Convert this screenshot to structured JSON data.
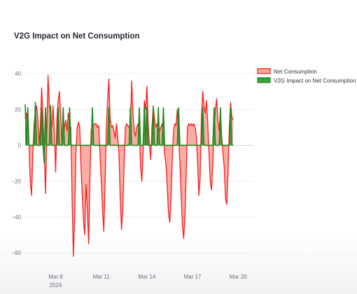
{
  "chart_data": {
    "type": "area",
    "title": "V2G Impact on Net Consumption",
    "xlabel": "",
    "ylabel": "",
    "ylim": [
      -65,
      42
    ],
    "yticks": [
      40,
      20,
      0,
      -20,
      -40,
      -60
    ],
    "xlim": [
      "2024-03-06",
      "2024-03-21"
    ],
    "xticks": [
      {
        "date": "2024-03-08",
        "label": "Mar 8",
        "sublabel": "2024"
      },
      {
        "date": "2024-03-11",
        "label": "Mar 11",
        "sublabel": ""
      },
      {
        "date": "2024-03-14",
        "label": "Mar 14",
        "sublabel": ""
      },
      {
        "date": "2024-03-17",
        "label": "Mar 17",
        "sublabel": ""
      },
      {
        "date": "2024-03-20",
        "label": "Mar 20",
        "sublabel": ""
      }
    ],
    "legend_position": "top-right",
    "series": [
      {
        "name": "Net Consumption",
        "color": "#ff1a1a",
        "fill": "#f7a59c",
        "points": [
          [
            "2024-03-06 00:00",
            15
          ],
          [
            "2024-03-06 02:00",
            18
          ],
          [
            "2024-03-06 04:00",
            9
          ],
          [
            "2024-03-06 06:00",
            0
          ],
          [
            "2024-03-06 08:00",
            -20
          ],
          [
            "2024-03-06 10:00",
            -28
          ],
          [
            "2024-03-06 12:00",
            -5
          ],
          [
            "2024-03-06 14:00",
            12
          ],
          [
            "2024-03-06 16:00",
            18
          ],
          [
            "2024-03-06 18:00",
            22
          ],
          [
            "2024-03-06 20:00",
            15
          ],
          [
            "2024-03-06 22:00",
            0
          ],
          [
            "2024-03-07 00:00",
            12
          ],
          [
            "2024-03-07 02:00",
            32
          ],
          [
            "2024-03-07 04:00",
            16
          ],
          [
            "2024-03-07 06:00",
            -2
          ],
          [
            "2024-03-07 08:00",
            -27
          ],
          [
            "2024-03-07 10:00",
            5
          ],
          [
            "2024-03-07 12:00",
            39
          ],
          [
            "2024-03-07 14:00",
            24
          ],
          [
            "2024-03-07 16:00",
            14
          ],
          [
            "2024-03-07 18:00",
            10
          ],
          [
            "2024-03-07 20:00",
            22
          ],
          [
            "2024-03-07 22:00",
            6
          ],
          [
            "2024-03-08 00:00",
            -15
          ],
          [
            "2024-03-08 02:00",
            15
          ],
          [
            "2024-03-08 04:00",
            25
          ],
          [
            "2024-03-08 06:00",
            30
          ],
          [
            "2024-03-08 08:00",
            17
          ],
          [
            "2024-03-08 10:00",
            0
          ],
          [
            "2024-03-08 12:00",
            4
          ],
          [
            "2024-03-08 14:00",
            10
          ],
          [
            "2024-03-08 16:00",
            14
          ],
          [
            "2024-03-08 18:00",
            8
          ],
          [
            "2024-03-08 20:00",
            18
          ],
          [
            "2024-03-08 22:00",
            12
          ],
          [
            "2024-03-09 00:00",
            10
          ],
          [
            "2024-03-09 02:00",
            -30
          ],
          [
            "2024-03-09 04:00",
            -62
          ],
          [
            "2024-03-09 06:00",
            -40
          ],
          [
            "2024-03-09 08:00",
            -5
          ],
          [
            "2024-03-09 10:00",
            10
          ],
          [
            "2024-03-09 12:00",
            13
          ],
          [
            "2024-03-09 14:00",
            10
          ],
          [
            "2024-03-09 16:00",
            -12
          ],
          [
            "2024-03-09 18:00",
            -28
          ],
          [
            "2024-03-09 20:00",
            -42
          ],
          [
            "2024-03-09 22:00",
            -50
          ],
          [
            "2024-03-10 00:00",
            -22
          ],
          [
            "2024-03-10 02:00",
            -35
          ],
          [
            "2024-03-10 04:00",
            -55
          ],
          [
            "2024-03-10 06:00",
            -20
          ],
          [
            "2024-03-10 08:00",
            8
          ],
          [
            "2024-03-10 10:00",
            12
          ],
          [
            "2024-03-10 12:00",
            11
          ],
          [
            "2024-03-10 14:00",
            12
          ],
          [
            "2024-03-10 16:00",
            12
          ],
          [
            "2024-03-10 18:00",
            10
          ],
          [
            "2024-03-10 20:00",
            11
          ],
          [
            "2024-03-10 22:00",
            -5
          ],
          [
            "2024-03-11 00:00",
            -20
          ],
          [
            "2024-03-11 02:00",
            -36
          ],
          [
            "2024-03-11 04:00",
            -48
          ],
          [
            "2024-03-11 06:00",
            -22
          ],
          [
            "2024-03-11 08:00",
            10
          ],
          [
            "2024-03-11 10:00",
            25
          ],
          [
            "2024-03-11 12:00",
            37
          ],
          [
            "2024-03-11 14:00",
            15
          ],
          [
            "2024-03-11 16:00",
            10
          ],
          [
            "2024-03-11 18:00",
            11
          ],
          [
            "2024-03-11 20:00",
            8
          ],
          [
            "2024-03-11 22:00",
            4
          ],
          [
            "2024-03-12 00:00",
            12
          ],
          [
            "2024-03-12 02:00",
            4
          ],
          [
            "2024-03-12 04:00",
            -5
          ],
          [
            "2024-03-12 06:00",
            -30
          ],
          [
            "2024-03-12 08:00",
            -47
          ],
          [
            "2024-03-12 10:00",
            -35
          ],
          [
            "2024-03-12 12:00",
            -10
          ],
          [
            "2024-03-12 14:00",
            10
          ],
          [
            "2024-03-12 16:00",
            12
          ],
          [
            "2024-03-12 18:00",
            11
          ],
          [
            "2024-03-12 20:00",
            10
          ],
          [
            "2024-03-12 22:00",
            12
          ],
          [
            "2024-03-13 00:00",
            36
          ],
          [
            "2024-03-13 02:00",
            18
          ],
          [
            "2024-03-13 04:00",
            8
          ],
          [
            "2024-03-13 06:00",
            5
          ],
          [
            "2024-03-13 08:00",
            10
          ],
          [
            "2024-03-13 10:00",
            12
          ],
          [
            "2024-03-13 12:00",
            10
          ],
          [
            "2024-03-13 14:00",
            -12
          ],
          [
            "2024-03-13 16:00",
            -20
          ],
          [
            "2024-03-13 18:00",
            -5
          ],
          [
            "2024-03-13 20:00",
            25
          ],
          [
            "2024-03-13 22:00",
            20
          ],
          [
            "2024-03-14 00:00",
            33
          ],
          [
            "2024-03-14 02:00",
            12
          ],
          [
            "2024-03-14 04:00",
            0
          ],
          [
            "2024-03-14 06:00",
            -8
          ],
          [
            "2024-03-14 08:00",
            10
          ],
          [
            "2024-03-14 10:00",
            22
          ],
          [
            "2024-03-14 12:00",
            15
          ],
          [
            "2024-03-14 14:00",
            10
          ],
          [
            "2024-03-14 16:00",
            12
          ],
          [
            "2024-03-14 18:00",
            11
          ],
          [
            "2024-03-14 20:00",
            8
          ],
          [
            "2024-03-14 22:00",
            10
          ],
          [
            "2024-03-15 00:00",
            12
          ],
          [
            "2024-03-15 02:00",
            4
          ],
          [
            "2024-03-15 04:00",
            -5
          ],
          [
            "2024-03-15 06:00",
            -10
          ],
          [
            "2024-03-15 08:00",
            -22
          ],
          [
            "2024-03-15 10:00",
            -38
          ],
          [
            "2024-03-15 12:00",
            -43
          ],
          [
            "2024-03-15 14:00",
            -30
          ],
          [
            "2024-03-15 16:00",
            -8
          ],
          [
            "2024-03-15 18:00",
            8
          ],
          [
            "2024-03-15 20:00",
            12
          ],
          [
            "2024-03-15 22:00",
            11
          ],
          [
            "2024-03-16 00:00",
            20
          ],
          [
            "2024-03-16 02:00",
            5
          ],
          [
            "2024-03-16 04:00",
            -10
          ],
          [
            "2024-03-16 06:00",
            -28
          ],
          [
            "2024-03-16 08:00",
            -45
          ],
          [
            "2024-03-16 10:00",
            -52
          ],
          [
            "2024-03-16 12:00",
            -40
          ],
          [
            "2024-03-16 14:00",
            -15
          ],
          [
            "2024-03-16 16:00",
            10
          ],
          [
            "2024-03-16 18:00",
            12
          ],
          [
            "2024-03-16 20:00",
            11
          ],
          [
            "2024-03-16 22:00",
            12
          ],
          [
            "2024-03-17 00:00",
            11
          ],
          [
            "2024-03-17 02:00",
            12
          ],
          [
            "2024-03-17 04:00",
            10
          ],
          [
            "2024-03-17 06:00",
            5
          ],
          [
            "2024-03-17 08:00",
            -10
          ],
          [
            "2024-03-17 10:00",
            -28
          ],
          [
            "2024-03-17 12:00",
            -18
          ],
          [
            "2024-03-17 14:00",
            15
          ],
          [
            "2024-03-17 16:00",
            30
          ],
          [
            "2024-03-17 18:00",
            22
          ],
          [
            "2024-03-17 20:00",
            18
          ],
          [
            "2024-03-17 22:00",
            25
          ],
          [
            "2024-03-18 00:00",
            12
          ],
          [
            "2024-03-18 02:00",
            -5
          ],
          [
            "2024-03-18 04:00",
            -20
          ],
          [
            "2024-03-18 06:00",
            -25
          ],
          [
            "2024-03-18 08:00",
            -10
          ],
          [
            "2024-03-18 10:00",
            10
          ],
          [
            "2024-03-18 12:00",
            20
          ],
          [
            "2024-03-18 14:00",
            26
          ],
          [
            "2024-03-18 16:00",
            14
          ],
          [
            "2024-03-18 18:00",
            8
          ],
          [
            "2024-03-18 20:00",
            18
          ],
          [
            "2024-03-18 22:00",
            5
          ],
          [
            "2024-03-19 00:00",
            -5
          ],
          [
            "2024-03-19 02:00",
            -12
          ],
          [
            "2024-03-19 04:00",
            -30
          ],
          [
            "2024-03-19 06:00",
            -33
          ],
          [
            "2024-03-19 08:00",
            -15
          ],
          [
            "2024-03-19 10:00",
            10
          ],
          [
            "2024-03-19 12:00",
            24
          ],
          [
            "2024-03-19 14:00",
            16
          ],
          [
            "2024-03-19 16:00",
            14
          ]
        ]
      },
      {
        "name": "V2G Impact on Net Consumption",
        "color": "#1e8a1e",
        "fill": "#3f9f3f",
        "points": [
          [
            "2024-03-06 00:00",
            23
          ],
          [
            "2024-03-06 02:00",
            0
          ],
          [
            "2024-03-06 04:00",
            21
          ],
          [
            "2024-03-06 06:00",
            0
          ],
          [
            "2024-03-06 14:00",
            0
          ],
          [
            "2024-03-06 16:00",
            24
          ],
          [
            "2024-03-06 18:00",
            0
          ],
          [
            "2024-03-07 00:00",
            0
          ],
          [
            "2024-03-07 02:00",
            21
          ],
          [
            "2024-03-07 04:00",
            0
          ],
          [
            "2024-03-07 06:00",
            -10
          ],
          [
            "2024-03-07 08:00",
            21
          ],
          [
            "2024-03-07 10:00",
            0
          ],
          [
            "2024-03-07 14:00",
            0
          ],
          [
            "2024-03-07 16:00",
            22
          ],
          [
            "2024-03-07 18:00",
            0
          ],
          [
            "2024-03-08 02:00",
            0
          ],
          [
            "2024-03-08 04:00",
            21
          ],
          [
            "2024-03-08 06:00",
            0
          ],
          [
            "2024-03-08 10:00",
            0
          ],
          [
            "2024-03-08 12:00",
            21
          ],
          [
            "2024-03-08 14:00",
            0
          ],
          [
            "2024-03-08 20:00",
            0
          ],
          [
            "2024-03-08 22:00",
            21
          ],
          [
            "2024-03-09 00:00",
            0
          ],
          [
            "2024-03-10 08:00",
            0
          ],
          [
            "2024-03-10 10:00",
            21
          ],
          [
            "2024-03-10 12:00",
            0
          ],
          [
            "2024-03-11 10:00",
            0
          ],
          [
            "2024-03-11 12:00",
            21
          ],
          [
            "2024-03-11 14:00",
            0
          ],
          [
            "2024-03-12 20:00",
            0
          ],
          [
            "2024-03-12 22:00",
            21
          ],
          [
            "2024-03-13 00:00",
            0
          ],
          [
            "2024-03-13 10:00",
            0
          ],
          [
            "2024-03-13 12:00",
            21
          ],
          [
            "2024-03-13 14:00",
            0
          ],
          [
            "2024-03-13 18:00",
            0
          ],
          [
            "2024-03-13 20:00",
            21
          ],
          [
            "2024-03-13 22:00",
            0
          ],
          [
            "2024-03-14 00:00",
            21
          ],
          [
            "2024-03-14 02:00",
            0
          ],
          [
            "2024-03-14 08:00",
            0
          ],
          [
            "2024-03-14 10:00",
            21
          ],
          [
            "2024-03-14 12:00",
            0
          ],
          [
            "2024-03-14 16:00",
            0
          ],
          [
            "2024-03-14 18:00",
            21
          ],
          [
            "2024-03-14 20:00",
            0
          ],
          [
            "2024-03-15 00:00",
            0
          ],
          [
            "2024-03-15 02:00",
            21
          ],
          [
            "2024-03-15 04:00",
            0
          ],
          [
            "2024-03-16 00:00",
            0
          ],
          [
            "2024-03-16 02:00",
            21
          ],
          [
            "2024-03-16 04:00",
            0
          ],
          [
            "2024-03-17 14:00",
            0
          ],
          [
            "2024-03-17 16:00",
            21
          ],
          [
            "2024-03-17 18:00",
            0
          ],
          [
            "2024-03-18 08:00",
            0
          ],
          [
            "2024-03-18 10:00",
            21
          ],
          [
            "2024-03-18 12:00",
            0
          ],
          [
            "2024-03-18 18:00",
            0
          ],
          [
            "2024-03-18 20:00",
            21
          ],
          [
            "2024-03-18 22:00",
            0
          ],
          [
            "2024-03-19 10:00",
            0
          ],
          [
            "2024-03-19 12:00",
            21
          ],
          [
            "2024-03-19 14:00",
            0
          ],
          [
            "2024-03-19 16:00",
            0
          ]
        ]
      }
    ]
  }
}
